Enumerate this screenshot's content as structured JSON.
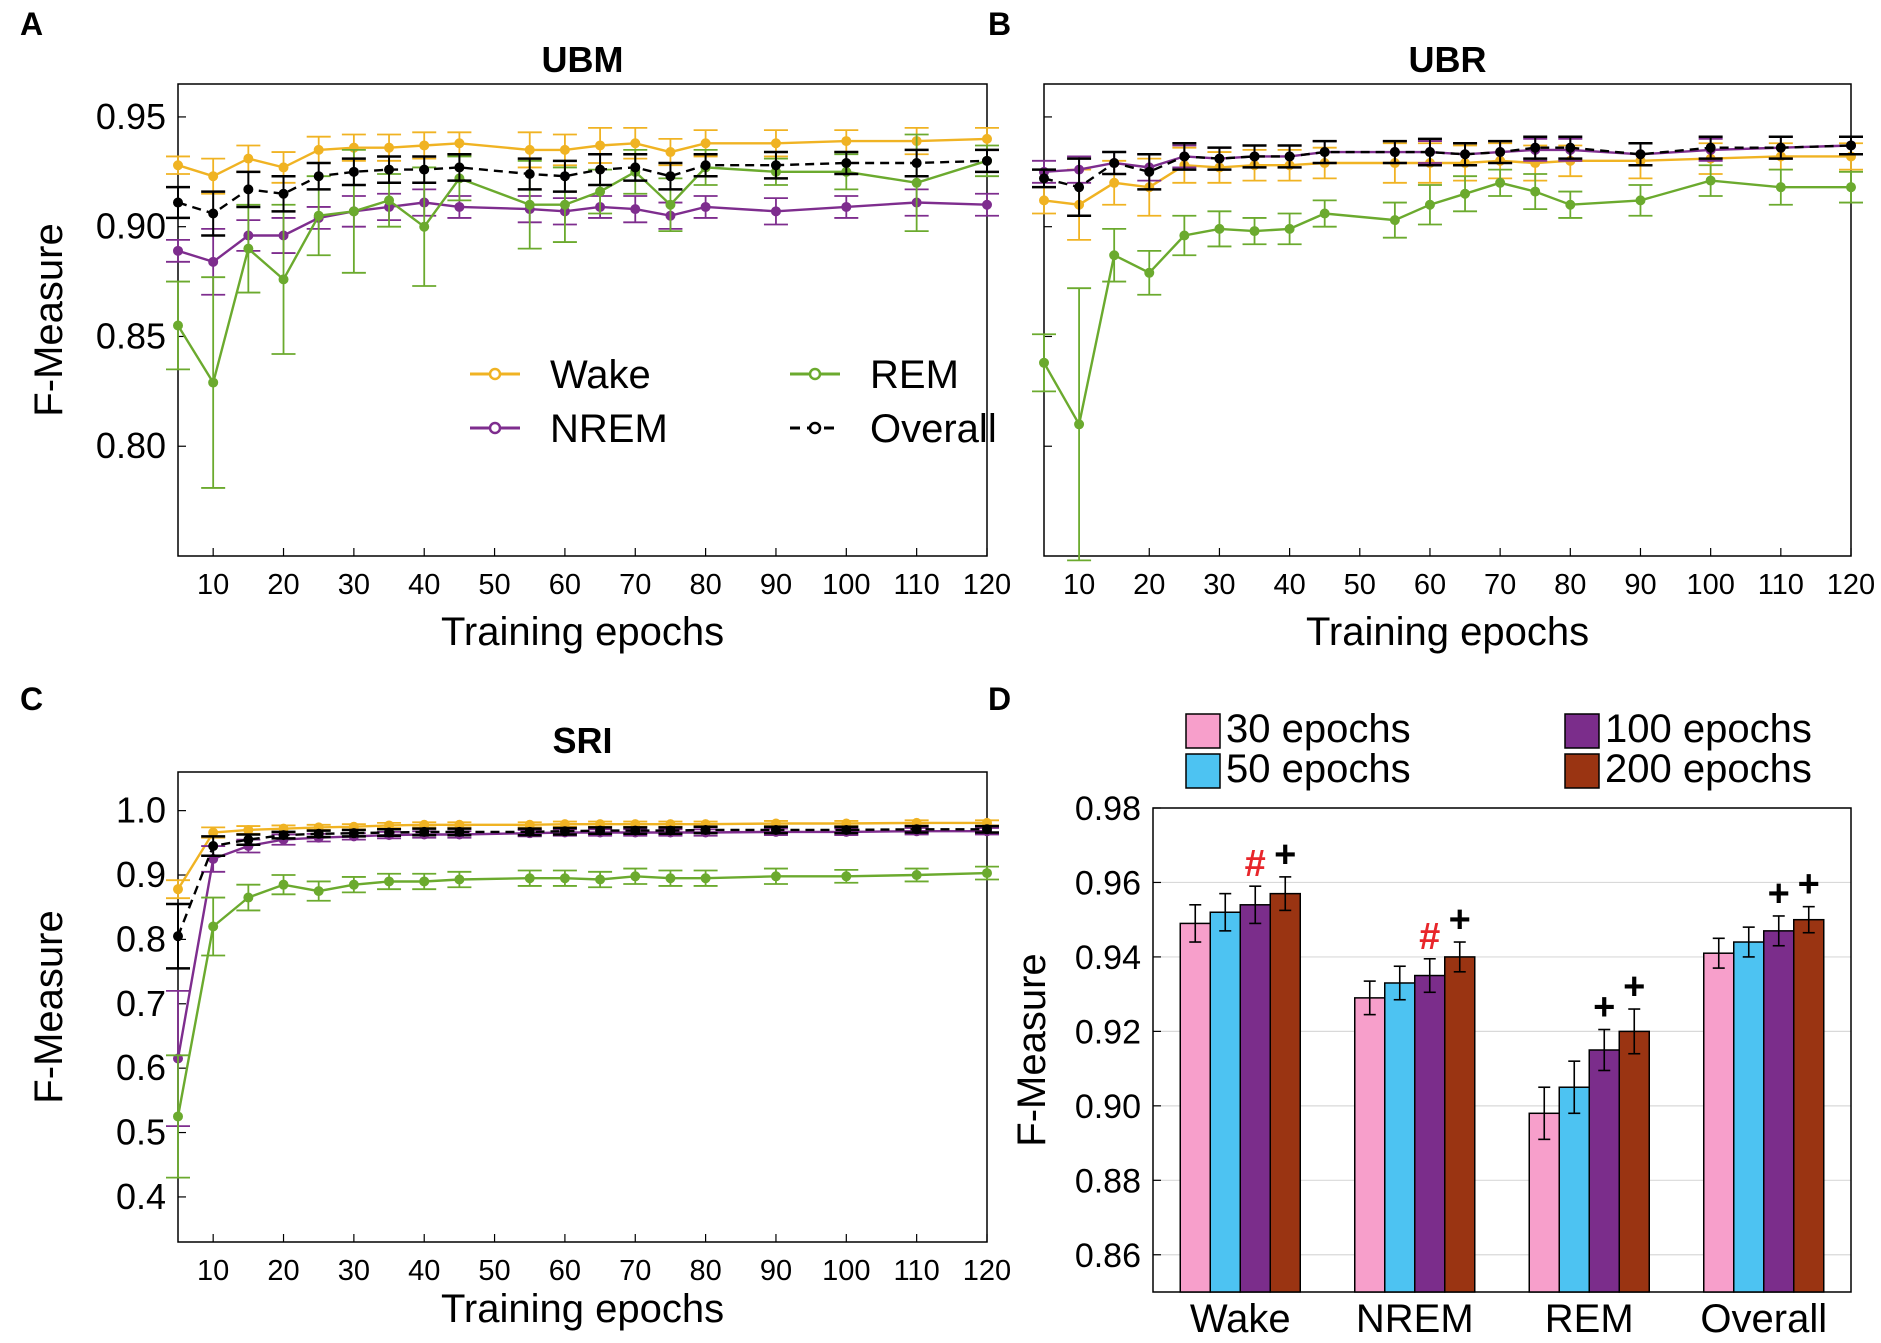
{
  "colors": {
    "wake": "#F0B323",
    "nrem": "#7E2D8E",
    "rem": "#6BAA2E",
    "overall": "#000000",
    "bar_30": "#F79FCB",
    "bar_50": "#4DC3F2",
    "bar_100": "#7B2D8B",
    "bar_200": "#9A3412",
    "sig_hash": "#E8262B",
    "sig_plus": "#000000"
  },
  "chart_data": [
    {
      "panel": "A",
      "type": "line",
      "title": "UBM",
      "xlabel": "Training epochs",
      "ylabel": "F-Measure",
      "xlim": [
        5,
        120
      ],
      "ylim": [
        0.75,
        0.965
      ],
      "xticks": [
        "10",
        "20",
        "30",
        "40",
        "50",
        "60",
        "70",
        "80",
        "90",
        "100",
        "110",
        "120"
      ],
      "yticks": [
        "0.80",
        "0.85",
        "0.90",
        "0.95"
      ],
      "legend": {
        "placement": "bottom-center",
        "entries": [
          "Wake",
          "REM",
          "NREM",
          "Overall"
        ]
      },
      "x": [
        5,
        10,
        15,
        20,
        25,
        30,
        35,
        40,
        45,
        55,
        60,
        65,
        70,
        75,
        80,
        90,
        100,
        110,
        120
      ],
      "series": [
        {
          "name": "Wake",
          "key": "wake",
          "dashed": false,
          "values": [
            0.928,
            0.923,
            0.931,
            0.927,
            0.935,
            0.936,
            0.936,
            0.937,
            0.938,
            0.935,
            0.935,
            0.937,
            0.938,
            0.934,
            0.938,
            0.938,
            0.939,
            0.939,
            0.94
          ],
          "err": [
            0.004,
            0.008,
            0.006,
            0.007,
            0.006,
            0.006,
            0.006,
            0.006,
            0.005,
            0.008,
            0.007,
            0.008,
            0.007,
            0.006,
            0.006,
            0.006,
            0.005,
            0.006,
            0.005
          ]
        },
        {
          "name": "NREM",
          "key": "nrem",
          "dashed": false,
          "values": [
            0.889,
            0.884,
            0.896,
            0.896,
            0.904,
            0.907,
            0.909,
            0.911,
            0.909,
            0.908,
            0.907,
            0.909,
            0.908,
            0.905,
            0.909,
            0.907,
            0.909,
            0.911,
            0.91
          ],
          "err": [
            0.005,
            0.015,
            0.007,
            0.008,
            0.005,
            0.007,
            0.006,
            0.006,
            0.005,
            0.006,
            0.006,
            0.005,
            0.006,
            0.006,
            0.005,
            0.006,
            0.005,
            0.006,
            0.005
          ]
        },
        {
          "name": "REM",
          "key": "rem",
          "dashed": false,
          "values": [
            0.855,
            0.829,
            0.89,
            0.876,
            0.905,
            0.907,
            0.912,
            0.9,
            0.922,
            0.91,
            0.91,
            0.916,
            0.925,
            0.91,
            0.927,
            0.925,
            0.925,
            0.92,
            0.93
          ],
          "err": [
            0.02,
            0.048,
            0.02,
            0.034,
            0.018,
            0.028,
            0.012,
            0.027,
            0.01,
            0.02,
            0.017,
            0.01,
            0.01,
            0.012,
            0.008,
            0.006,
            0.008,
            0.022,
            0.007
          ]
        },
        {
          "name": "Overall",
          "key": "overall",
          "dashed": true,
          "values": [
            0.911,
            0.906,
            0.917,
            0.915,
            0.923,
            0.925,
            0.926,
            0.926,
            0.927,
            0.924,
            0.923,
            0.926,
            0.927,
            0.923,
            0.928,
            0.928,
            0.929,
            0.929,
            0.93
          ],
          "err": [
            0.007,
            0.01,
            0.008,
            0.008,
            0.006,
            0.006,
            0.006,
            0.006,
            0.006,
            0.007,
            0.007,
            0.007,
            0.006,
            0.006,
            0.005,
            0.006,
            0.005,
            0.006,
            0.005
          ]
        }
      ]
    },
    {
      "panel": "B",
      "type": "line",
      "title": "UBR",
      "xlabel": "Training epochs",
      "ylabel": "",
      "xlim": [
        5,
        120
      ],
      "ylim": [
        0.75,
        0.965
      ],
      "xticks": [
        "10",
        "20",
        "30",
        "40",
        "50",
        "60",
        "70",
        "80",
        "90",
        "100",
        "110",
        "120"
      ],
      "yticks": [],
      "x": [
        5,
        10,
        15,
        20,
        25,
        30,
        35,
        40,
        45,
        55,
        60,
        65,
        70,
        75,
        80,
        90,
        100,
        110,
        120
      ],
      "series": [
        {
          "name": "Wake",
          "key": "wake",
          "dashed": false,
          "values": [
            0.912,
            0.91,
            0.92,
            0.918,
            0.928,
            0.927,
            0.928,
            0.928,
            0.929,
            0.929,
            0.929,
            0.929,
            0.93,
            0.929,
            0.93,
            0.93,
            0.931,
            0.932,
            0.932
          ],
          "err": [
            0.006,
            0.016,
            0.01,
            0.013,
            0.008,
            0.007,
            0.007,
            0.007,
            0.007,
            0.009,
            0.009,
            0.008,
            0.008,
            0.008,
            0.007,
            0.008,
            0.007,
            0.006,
            0.006
          ]
        },
        {
          "name": "NREM",
          "key": "nrem",
          "dashed": false,
          "values": [
            0.925,
            0.926,
            0.929,
            0.927,
            0.932,
            0.931,
            0.932,
            0.932,
            0.934,
            0.934,
            0.934,
            0.933,
            0.934,
            0.935,
            0.935,
            0.933,
            0.935,
            0.936,
            0.937
          ],
          "err": [
            0.005,
            0.006,
            0.005,
            0.006,
            0.005,
            0.005,
            0.005,
            0.005,
            0.005,
            0.005,
            0.005,
            0.005,
            0.005,
            0.005,
            0.005,
            0.005,
            0.005,
            0.005,
            0.004
          ]
        },
        {
          "name": "REM",
          "key": "rem",
          "dashed": false,
          "values": [
            0.838,
            0.81,
            0.887,
            0.879,
            0.896,
            0.899,
            0.898,
            0.899,
            0.906,
            0.903,
            0.91,
            0.915,
            0.92,
            0.916,
            0.91,
            0.912,
            0.921,
            0.918,
            0.918
          ],
          "err": [
            0.013,
            0.062,
            0.012,
            0.01,
            0.009,
            0.008,
            0.006,
            0.007,
            0.006,
            0.008,
            0.009,
            0.008,
            0.006,
            0.008,
            0.006,
            0.007,
            0.007,
            0.008,
            0.007
          ]
        },
        {
          "name": "Overall",
          "key": "overall",
          "dashed": true,
          "values": [
            0.922,
            0.918,
            0.929,
            0.925,
            0.932,
            0.931,
            0.932,
            0.932,
            0.934,
            0.934,
            0.934,
            0.933,
            0.934,
            0.936,
            0.936,
            0.933,
            0.936,
            0.936,
            0.937
          ],
          "err": [
            0.004,
            0.013,
            0.005,
            0.008,
            0.006,
            0.005,
            0.005,
            0.005,
            0.005,
            0.005,
            0.006,
            0.005,
            0.005,
            0.005,
            0.005,
            0.005,
            0.005,
            0.005,
            0.004
          ]
        }
      ]
    },
    {
      "panel": "C",
      "type": "line",
      "title": "SRI",
      "xlabel": "Training epochs",
      "ylabel": "F-Measure",
      "xlim": [
        5,
        120
      ],
      "ylim": [
        0.33,
        1.06
      ],
      "xticks": [
        "10",
        "20",
        "30",
        "40",
        "50",
        "60",
        "70",
        "80",
        "90",
        "100",
        "110",
        "120"
      ],
      "yticks": [
        "0.4",
        "0.5",
        "0.6",
        "0.7",
        "0.8",
        "0.9",
        "1.0"
      ],
      "x": [
        5,
        10,
        15,
        20,
        25,
        30,
        35,
        40,
        45,
        55,
        60,
        65,
        70,
        75,
        80,
        90,
        100,
        110,
        120
      ],
      "series": [
        {
          "name": "Wake",
          "key": "wake",
          "dashed": false,
          "values": [
            0.878,
            0.966,
            0.97,
            0.972,
            0.974,
            0.975,
            0.977,
            0.978,
            0.978,
            0.978,
            0.979,
            0.979,
            0.979,
            0.979,
            0.979,
            0.98,
            0.98,
            0.981,
            0.981
          ],
          "err": [
            0.014,
            0.008,
            0.006,
            0.005,
            0.004,
            0.004,
            0.004,
            0.004,
            0.004,
            0.004,
            0.004,
            0.004,
            0.004,
            0.004,
            0.004,
            0.004,
            0.004,
            0.004,
            0.004
          ]
        },
        {
          "name": "NREM",
          "key": "nrem",
          "dashed": false,
          "values": [
            0.615,
            0.925,
            0.945,
            0.955,
            0.958,
            0.96,
            0.962,
            0.963,
            0.963,
            0.965,
            0.966,
            0.966,
            0.966,
            0.966,
            0.966,
            0.967,
            0.967,
            0.968,
            0.968
          ],
          "err": [
            0.105,
            0.02,
            0.01,
            0.008,
            0.006,
            0.005,
            0.005,
            0.005,
            0.005,
            0.005,
            0.005,
            0.005,
            0.005,
            0.005,
            0.005,
            0.005,
            0.005,
            0.005,
            0.005
          ]
        },
        {
          "name": "REM",
          "key": "rem",
          "dashed": false,
          "values": [
            0.525,
            0.82,
            0.865,
            0.885,
            0.875,
            0.885,
            0.89,
            0.89,
            0.893,
            0.895,
            0.895,
            0.893,
            0.898,
            0.895,
            0.895,
            0.898,
            0.898,
            0.9,
            0.903
          ],
          "err": [
            0.095,
            0.045,
            0.02,
            0.015,
            0.015,
            0.012,
            0.012,
            0.012,
            0.012,
            0.012,
            0.012,
            0.012,
            0.012,
            0.012,
            0.012,
            0.012,
            0.01,
            0.01,
            0.01
          ]
        },
        {
          "name": "Overall",
          "key": "overall",
          "dashed": true,
          "values": [
            0.805,
            0.945,
            0.955,
            0.962,
            0.964,
            0.965,
            0.966,
            0.967,
            0.967,
            0.967,
            0.968,
            0.969,
            0.969,
            0.969,
            0.97,
            0.97,
            0.97,
            0.971,
            0.971
          ],
          "err": [
            0.05,
            0.015,
            0.008,
            0.005,
            0.005,
            0.005,
            0.005,
            0.005,
            0.005,
            0.005,
            0.005,
            0.005,
            0.005,
            0.005,
            0.005,
            0.005,
            0.005,
            0.005,
            0.005
          ]
        }
      ]
    },
    {
      "panel": "D",
      "type": "bar",
      "title": "",
      "xlabel": "",
      "ylabel": "F-Measure",
      "ylim": [
        0.85,
        0.98
      ],
      "yticks": [
        "0.86",
        "0.88",
        "0.90",
        "0.92",
        "0.94",
        "0.96",
        "0.98"
      ],
      "grid": true,
      "categories": [
        "Wake",
        "NREM",
        "REM",
        "Overall"
      ],
      "legend": {
        "placement": "top",
        "entries": [
          "30 epochs",
          "50 epochs",
          "100 epochs",
          "200 epochs"
        ]
      },
      "series": [
        {
          "name": "30 epochs",
          "key": "bar_30",
          "values": [
            0.949,
            0.929,
            0.898,
            0.941
          ],
          "err": [
            0.005,
            0.0045,
            0.007,
            0.004
          ]
        },
        {
          "name": "50 epochs",
          "key": "bar_50",
          "values": [
            0.952,
            0.933,
            0.905,
            0.944
          ],
          "err": [
            0.005,
            0.0045,
            0.007,
            0.004
          ]
        },
        {
          "name": "100 epochs",
          "key": "bar_100",
          "values": [
            0.954,
            0.935,
            0.915,
            0.947
          ],
          "err": [
            0.005,
            0.0045,
            0.0055,
            0.004
          ]
        },
        {
          "name": "200 epochs",
          "key": "bar_200",
          "values": [
            0.957,
            0.94,
            0.92,
            0.95
          ],
          "err": [
            0.0045,
            0.004,
            0.006,
            0.0035
          ]
        }
      ],
      "annotations": [
        {
          "category": 0,
          "series": 2,
          "text": "#",
          "kind": "hash"
        },
        {
          "category": 0,
          "series": 3,
          "text": "+",
          "kind": "plus"
        },
        {
          "category": 1,
          "series": 2,
          "text": "#",
          "kind": "hash"
        },
        {
          "category": 1,
          "series": 3,
          "text": "+",
          "kind": "plus"
        },
        {
          "category": 2,
          "series": 2,
          "text": "+",
          "kind": "plus"
        },
        {
          "category": 2,
          "series": 3,
          "text": "+",
          "kind": "plus"
        },
        {
          "category": 3,
          "series": 2,
          "text": "+",
          "kind": "plus"
        },
        {
          "category": 3,
          "series": 3,
          "text": "+",
          "kind": "plus"
        }
      ]
    }
  ],
  "panel_letters": [
    "A",
    "B",
    "C",
    "D"
  ]
}
